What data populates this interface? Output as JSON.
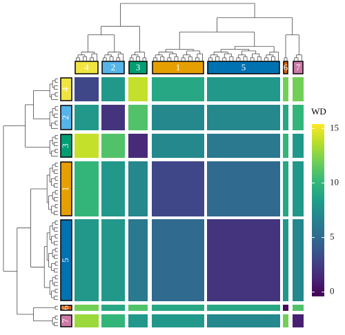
{
  "chart_data": {
    "type": "heatmap",
    "x_categories": [
      "4",
      "2",
      "3",
      "1",
      "5",
      "6",
      "7"
    ],
    "y_categories": [
      "4",
      "2",
      "3",
      "1",
      "5",
      "6",
      "7"
    ],
    "category_colors": [
      "#f0e442",
      "#56b4e9",
      "#009e73",
      "#e69f00",
      "#0072b2",
      "#d55e00",
      "#cc79a7"
    ],
    "values": [
      [
        3,
        8,
        14,
        9,
        8,
        12,
        12
      ],
      [
        8,
        2,
        11,
        7,
        7,
        9,
        10
      ],
      [
        14,
        11,
        1.5,
        7,
        6,
        10,
        8
      ],
      [
        10,
        8,
        7,
        3,
        5,
        9,
        8
      ],
      [
        8,
        8,
        6,
        5,
        2,
        8,
        7
      ],
      [
        12,
        9,
        11,
        9,
        9,
        0,
        11
      ],
      [
        13,
        10,
        8,
        8,
        7,
        12,
        1
      ]
    ],
    "colormap": "viridis",
    "colorbar_title": "WD",
    "zlim": [
      -0.4,
      15.4
    ],
    "zticks": [
      0,
      5,
      10,
      15
    ]
  }
}
